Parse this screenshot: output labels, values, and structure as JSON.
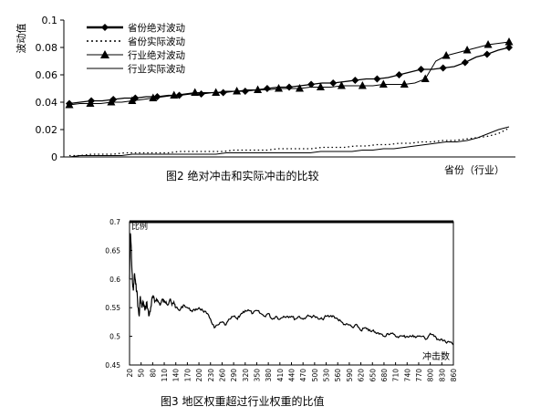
{
  "chart_data": [
    {
      "type": "line",
      "caption": "图2   绝对冲击和实际冲击的比较",
      "ylabel": "波动值",
      "xlabel": "省份（行业）",
      "ylim": [
        0,
        0.1
      ],
      "yticks": [
        "0",
        "0.02",
        "0.04",
        "0.06",
        "0.08",
        "0.1"
      ],
      "legend_position": "top-left",
      "series": [
        {
          "name": "省份绝对波动",
          "color": "#000000",
          "style": "solid-diamond",
          "values": [
            0.039,
            0.04,
            0.041,
            0.041,
            0.042,
            0.043,
            0.043,
            0.044,
            0.044,
            0.045,
            0.045,
            0.046,
            0.046,
            0.047,
            0.047,
            0.048,
            0.048,
            0.049,
            0.05,
            0.051,
            0.051,
            0.052,
            0.053,
            0.054,
            0.054,
            0.055,
            0.056,
            0.057,
            0.057,
            0.058,
            0.06,
            0.062,
            0.064,
            0.064,
            0.065,
            0.066,
            0.069,
            0.073,
            0.075,
            0.078,
            0.08
          ]
        },
        {
          "name": "省份实际波动",
          "color": "#000000",
          "style": "dotted",
          "values": [
            0.001,
            0.001,
            0.002,
            0.002,
            0.002,
            0.003,
            0.003,
            0.003,
            0.003,
            0.003,
            0.004,
            0.004,
            0.004,
            0.004,
            0.004,
            0.005,
            0.005,
            0.005,
            0.005,
            0.006,
            0.006,
            0.006,
            0.006,
            0.007,
            0.007,
            0.007,
            0.008,
            0.008,
            0.009,
            0.009,
            0.01,
            0.01,
            0.011,
            0.011,
            0.012,
            0.012,
            0.013,
            0.014,
            0.015,
            0.017,
            0.021
          ]
        },
        {
          "name": "行业绝对波动",
          "color": "#000000",
          "style": "solid-triangle",
          "values": [
            0.038,
            0.039,
            0.039,
            0.039,
            0.04,
            0.04,
            0.041,
            0.042,
            0.043,
            0.044,
            0.045,
            0.046,
            0.047,
            0.047,
            0.047,
            0.048,
            0.048,
            0.049,
            0.049,
            0.049,
            0.05,
            0.05,
            0.05,
            0.051,
            0.051,
            0.051,
            0.052,
            0.052,
            0.052,
            0.052,
            0.053,
            0.053,
            0.053,
            0.054,
            0.057,
            0.07,
            0.074,
            0.076,
            0.078,
            0.08,
            0.082,
            0.083,
            0.084
          ]
        },
        {
          "name": "行业实际波动",
          "color": "#000000",
          "style": "solid",
          "values": [
            0.0,
            0.001,
            0.001,
            0.001,
            0.001,
            0.001,
            0.002,
            0.002,
            0.002,
            0.002,
            0.002,
            0.002,
            0.002,
            0.002,
            0.002,
            0.003,
            0.003,
            0.003,
            0.003,
            0.003,
            0.003,
            0.003,
            0.003,
            0.003,
            0.004,
            0.004,
            0.004,
            0.004,
            0.005,
            0.005,
            0.006,
            0.006,
            0.007,
            0.008,
            0.009,
            0.01,
            0.011,
            0.011,
            0.012,
            0.014,
            0.017,
            0.02,
            0.022
          ]
        }
      ]
    },
    {
      "type": "line",
      "caption": "图3   地区权重超过行业权重的比值",
      "ylabel": "比例",
      "xlabel": "冲击数",
      "ylim": [
        0.45,
        0.7
      ],
      "yticks": [
        "0.45",
        "0.5",
        "0.55",
        "0.6",
        "0.65",
        "0.7"
      ],
      "xticks": [
        "20",
        "50",
        "80",
        "110",
        "140",
        "170",
        "200",
        "230",
        "260",
        "290",
        "320",
        "350",
        "380",
        "410",
        "440",
        "470",
        "500",
        "530",
        "560",
        "590",
        "620",
        "650",
        "680",
        "710",
        "740",
        "770",
        "800",
        "830",
        "860"
      ],
      "xlim": [
        20,
        860
      ],
      "series": [
        {
          "name": "",
          "color": "#000000",
          "style": "solid",
          "x": [
            20,
            22,
            24,
            26,
            28,
            30,
            33,
            36,
            39,
            42,
            45,
            48,
            52,
            56,
            60,
            65,
            70,
            75,
            80,
            85,
            90,
            95,
            100,
            105,
            110,
            115,
            120,
            125,
            130,
            135,
            140,
            150,
            160,
            170,
            180,
            190,
            200,
            210,
            220,
            230,
            240,
            250,
            260,
            270,
            280,
            290,
            300,
            310,
            320,
            330,
            340,
            350,
            360,
            370,
            380,
            390,
            400,
            410,
            420,
            430,
            440,
            450,
            460,
            470,
            480,
            490,
            500,
            510,
            520,
            530,
            540,
            550,
            560,
            570,
            580,
            590,
            600,
            610,
            620,
            630,
            640,
            650,
            660,
            670,
            680,
            690,
            700,
            710,
            720,
            730,
            740,
            750,
            760,
            770,
            780,
            790,
            800,
            810,
            820,
            830,
            840,
            850,
            860
          ],
          "values": [
            0.6,
            0.68,
            0.66,
            0.62,
            0.59,
            0.58,
            0.61,
            0.59,
            0.58,
            0.55,
            0.535,
            0.57,
            0.55,
            0.56,
            0.545,
            0.56,
            0.535,
            0.55,
            0.57,
            0.56,
            0.565,
            0.56,
            0.555,
            0.565,
            0.56,
            0.56,
            0.555,
            0.565,
            0.555,
            0.56,
            0.55,
            0.545,
            0.555,
            0.55,
            0.545,
            0.545,
            0.55,
            0.545,
            0.54,
            0.53,
            0.515,
            0.52,
            0.525,
            0.52,
            0.53,
            0.535,
            0.53,
            0.54,
            0.545,
            0.545,
            0.54,
            0.545,
            0.54,
            0.535,
            0.54,
            0.53,
            0.535,
            0.53,
            0.535,
            0.535,
            0.535,
            0.53,
            0.535,
            0.53,
            0.535,
            0.535,
            0.535,
            0.53,
            0.53,
            0.535,
            0.535,
            0.535,
            0.53,
            0.525,
            0.52,
            0.52,
            0.515,
            0.52,
            0.51,
            0.515,
            0.51,
            0.51,
            0.505,
            0.505,
            0.5,
            0.505,
            0.505,
            0.5,
            0.5,
            0.5,
            0.5,
            0.5,
            0.5,
            0.5,
            0.5,
            0.495,
            0.505,
            0.5,
            0.495,
            0.495,
            0.49,
            0.49,
            0.485
          ]
        }
      ]
    }
  ]
}
